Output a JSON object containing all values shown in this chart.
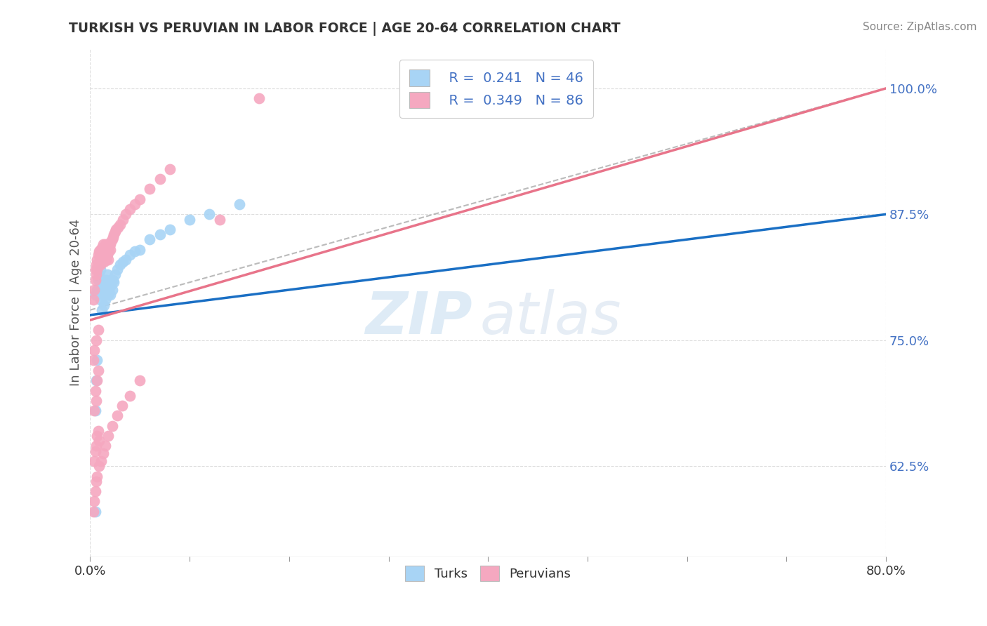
{
  "title": "TURKISH VS PERUVIAN IN LABOR FORCE | AGE 20-64 CORRELATION CHART",
  "source": "Source: ZipAtlas.com",
  "ylabel": "In Labor Force | Age 20-64",
  "xmin": 0.0,
  "xmax": 0.8,
  "ymin": 0.535,
  "ymax": 1.04,
  "yticks": [
    0.625,
    0.75,
    0.875,
    1.0
  ],
  "ytick_labels": [
    "62.5%",
    "75.0%",
    "87.5%",
    "100.0%"
  ],
  "xticks": [
    0.0,
    0.1,
    0.2,
    0.3,
    0.4,
    0.5,
    0.6,
    0.7,
    0.8
  ],
  "xtick_labels": [
    "0.0%",
    "",
    "",
    "",
    "",
    "",
    "",
    "",
    "80.0%"
  ],
  "legend_r_turks": "R =  0.241",
  "legend_n_turks": "N = 46",
  "legend_r_peruvians": "R =  0.349",
  "legend_n_peruvians": "N = 86",
  "turk_color": "#a8d4f5",
  "peruvian_color": "#f5a8c0",
  "turk_line_color": "#1a6fc4",
  "peruvian_line_color": "#e8748a",
  "ref_line_color": "#aaaaaa",
  "grid_color": "#dddddd",
  "turks_x": [
    0.005,
    0.007,
    0.008,
    0.009,
    0.01,
    0.01,
    0.011,
    0.012,
    0.012,
    0.013,
    0.013,
    0.014,
    0.014,
    0.015,
    0.015,
    0.016,
    0.016,
    0.017,
    0.017,
    0.018,
    0.018,
    0.019,
    0.02,
    0.02,
    0.021,
    0.022,
    0.023,
    0.024,
    0.025,
    0.027,
    0.03,
    0.033,
    0.036,
    0.04,
    0.045,
    0.05,
    0.06,
    0.07,
    0.08,
    0.1,
    0.12,
    0.15,
    0.005,
    0.006,
    0.007,
    0.005
  ],
  "turks_y": [
    0.795,
    0.8,
    0.81,
    0.815,
    0.82,
    0.79,
    0.8,
    0.81,
    0.78,
    0.795,
    0.81,
    0.785,
    0.8,
    0.79,
    0.805,
    0.795,
    0.81,
    0.8,
    0.815,
    0.795,
    0.808,
    0.8,
    0.81,
    0.795,
    0.805,
    0.8,
    0.81,
    0.808,
    0.815,
    0.82,
    0.825,
    0.828,
    0.83,
    0.835,
    0.838,
    0.84,
    0.85,
    0.855,
    0.86,
    0.87,
    0.875,
    0.885,
    0.68,
    0.71,
    0.73,
    0.58
  ],
  "peruvians_x": [
    0.003,
    0.004,
    0.005,
    0.005,
    0.006,
    0.006,
    0.007,
    0.007,
    0.008,
    0.008,
    0.009,
    0.009,
    0.01,
    0.01,
    0.01,
    0.011,
    0.011,
    0.012,
    0.012,
    0.012,
    0.013,
    0.013,
    0.014,
    0.014,
    0.014,
    0.015,
    0.015,
    0.016,
    0.016,
    0.016,
    0.017,
    0.017,
    0.018,
    0.018,
    0.019,
    0.019,
    0.02,
    0.02,
    0.021,
    0.022,
    0.023,
    0.024,
    0.025,
    0.026,
    0.028,
    0.03,
    0.033,
    0.036,
    0.04,
    0.045,
    0.05,
    0.06,
    0.07,
    0.08,
    0.004,
    0.005,
    0.006,
    0.007,
    0.008,
    0.004,
    0.005,
    0.006,
    0.007,
    0.008,
    0.009,
    0.003,
    0.004,
    0.005,
    0.006,
    0.007,
    0.009,
    0.011,
    0.013,
    0.015,
    0.018,
    0.022,
    0.027,
    0.032,
    0.04,
    0.05,
    0.003,
    0.004,
    0.006,
    0.008,
    0.13,
    0.17
  ],
  "peruvians_y": [
    0.79,
    0.8,
    0.81,
    0.82,
    0.825,
    0.815,
    0.82,
    0.83,
    0.825,
    0.835,
    0.828,
    0.838,
    0.83,
    0.84,
    0.825,
    0.83,
    0.84,
    0.832,
    0.842,
    0.828,
    0.835,
    0.845,
    0.838,
    0.828,
    0.84,
    0.835,
    0.845,
    0.84,
    0.83,
    0.842,
    0.835,
    0.845,
    0.84,
    0.83,
    0.838,
    0.845,
    0.84,
    0.845,
    0.848,
    0.85,
    0.852,
    0.855,
    0.858,
    0.86,
    0.862,
    0.865,
    0.87,
    0.875,
    0.88,
    0.885,
    0.89,
    0.9,
    0.91,
    0.92,
    0.68,
    0.7,
    0.69,
    0.71,
    0.72,
    0.63,
    0.64,
    0.645,
    0.655,
    0.66,
    0.65,
    0.58,
    0.59,
    0.6,
    0.61,
    0.615,
    0.625,
    0.63,
    0.638,
    0.645,
    0.655,
    0.665,
    0.675,
    0.685,
    0.695,
    0.71,
    0.73,
    0.74,
    0.75,
    0.76,
    0.87,
    0.99
  ],
  "turk_line": {
    "x0": 0.0,
    "y0": 0.775,
    "x1": 0.8,
    "y1": 0.875
  },
  "peruvian_line": {
    "x0": 0.0,
    "y0": 0.77,
    "x1": 0.8,
    "y1": 1.0
  },
  "ref_line": {
    "x0": 0.0,
    "y0": 0.78,
    "x1": 0.8,
    "y1": 1.0
  }
}
